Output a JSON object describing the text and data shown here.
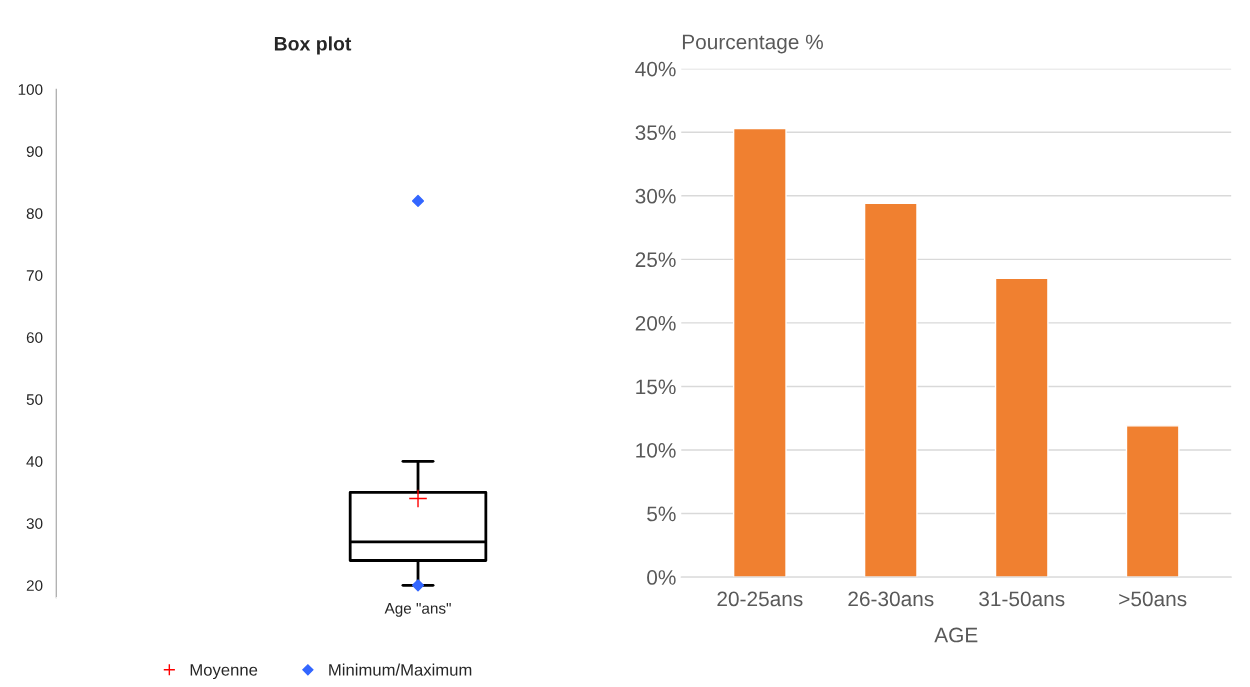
{
  "chart_data": [
    {
      "type": "box",
      "title": "Box plot",
      "categories": [
        "Age \"ans\""
      ],
      "boxes": [
        {
          "low": 20,
          "q1": 24,
          "median": 27,
          "q3": 35,
          "high": 40
        }
      ],
      "series": [
        {
          "type": "scatter",
          "name": "Moyenne",
          "color": "#ff0000",
          "marker": "cross",
          "x": [
            "Age \"ans\""
          ],
          "values": [
            34
          ]
        },
        {
          "type": "scatter",
          "name": "Minimum/Maximum",
          "color": "#3366ff",
          "marker": "diamond",
          "x": [
            "Age \"ans\"",
            "Age \"ans\""
          ],
          "values": [
            20,
            82
          ]
        }
      ],
      "ylim": [
        18,
        100
      ],
      "yticks": [
        20,
        30,
        40,
        50,
        60,
        70,
        80,
        90,
        100
      ],
      "grid": false,
      "legend": "bottom"
    },
    {
      "type": "bar",
      "categories": [
        "20-25ans",
        "26-30ans",
        "31-50ans",
        ">50ans"
      ],
      "values": [
        35.3,
        29.4,
        23.5,
        11.9
      ],
      "color": "#f08030",
      "xlabel": "AGE",
      "ylabel": "Pourcentage %",
      "ylim": [
        0,
        40
      ],
      "yticks": [
        {
          "value": 0,
          "label": "0%"
        },
        {
          "value": 5,
          "label": "5%"
        },
        {
          "value": 10,
          "label": "10%"
        },
        {
          "value": 15,
          "label": "15%"
        },
        {
          "value": 20,
          "label": "20%"
        },
        {
          "value": 25,
          "label": "25%"
        },
        {
          "value": 30,
          "label": "30%"
        },
        {
          "value": 35,
          "label": "35%"
        },
        {
          "value": 40,
          "label": "40%"
        }
      ],
      "grid": "y"
    }
  ]
}
